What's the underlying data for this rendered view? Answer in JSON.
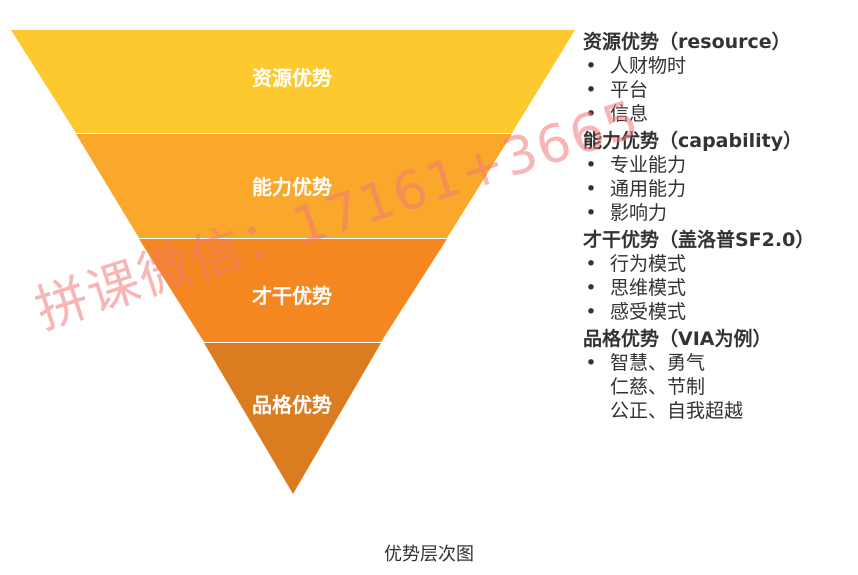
{
  "diagram": {
    "layers": [
      {
        "label": "资源优势",
        "color": "#FDC92F"
      },
      {
        "label": "能力优势",
        "color": "#F9A82B"
      },
      {
        "label": "才干优势",
        "color": "#F58721"
      },
      {
        "label": "品格优势",
        "color": "#DC7C20"
      }
    ],
    "groups": [
      {
        "title": "资源优势（resource）",
        "items": [
          "人财物时",
          "平台",
          "信息"
        ]
      },
      {
        "title": "能力优势（capability）",
        "items": [
          "专业能力",
          "通用能力",
          "影响力"
        ]
      },
      {
        "title": "才干优势（盖洛普SF2.0）",
        "items": [
          "行为模式",
          "思维模式",
          "感受模式"
        ]
      },
      {
        "title": "品格优势（VIA为例）",
        "items": [
          "智慧、勇气",
          "仁慈、节制",
          "公正、自我超越"
        ]
      }
    ],
    "caption": "优势层次图",
    "watermark": "拼课微信：17161+3665",
    "bullet_symbol": "•"
  }
}
